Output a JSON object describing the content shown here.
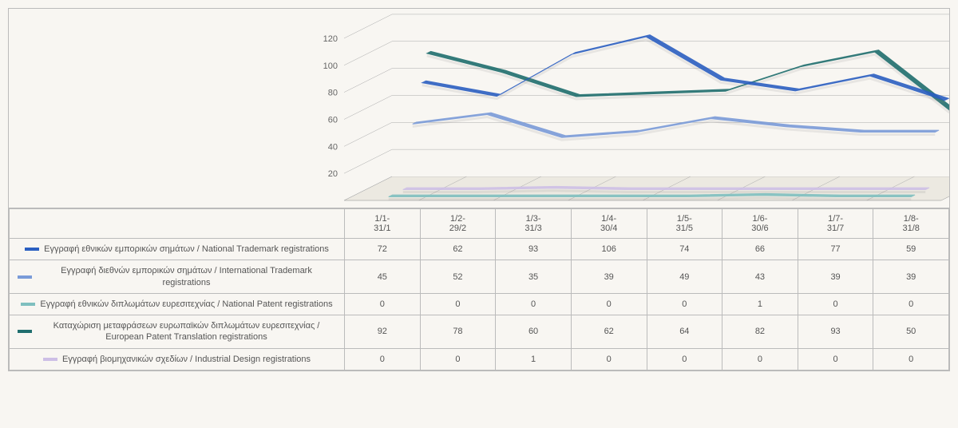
{
  "chart": {
    "type": "line-3d",
    "periods": [
      "1/1-31/1",
      "1/2-29/2",
      "1/3-31/3",
      "1/4-30/4",
      "1/5-31/5",
      "1/6-30/6",
      "1/7-31/7",
      "1/8-31/8"
    ],
    "y_ticks": [
      20,
      40,
      60,
      80,
      100,
      120
    ],
    "ylim": [
      0,
      130
    ],
    "background": "#f8f6f2",
    "grid_color": "#aaaaaa",
    "depth_skew": 60,
    "series": [
      {
        "key": "national_trademark",
        "color": "#2b5fc1",
        "label": "Εγγραφή εθνικών εμπορικών σημάτων / National Trademark registrations",
        "values": [
          72,
          62,
          93,
          106,
          74,
          66,
          77,
          59
        ]
      },
      {
        "key": "intl_trademark",
        "color": "#7a9bd8",
        "label": "Εγγραφή διεθνών εμπορικών σημάτων / International Trademark registrations",
        "values": [
          45,
          52,
          35,
          39,
          49,
          43,
          39,
          39
        ]
      },
      {
        "key": "national_patent",
        "color": "#7fbfbf",
        "label": "Εγγραφή εθνικών διπλωμάτων ευρεσιτεχνίας / National Patent registrations",
        "values": [
          0,
          0,
          0,
          0,
          0,
          1,
          0,
          0
        ]
      },
      {
        "key": "eu_patent_trans",
        "color": "#1f6e6e",
        "label": "Καταχώριση μεταφράσεων ευρωπαϊκών διπλωμάτων ευρεσιτεχνίας / European Patent Translation registrations",
        "values": [
          92,
          78,
          60,
          62,
          64,
          82,
          93,
          50
        ]
      },
      {
        "key": "industrial_design",
        "color": "#cdbfe6",
        "label": "Εγγραφή βιομηχανικών σχεδίων / Industrial Design registrations",
        "values": [
          0,
          0,
          1,
          0,
          0,
          0,
          0,
          0
        ]
      }
    ],
    "label_col_width": 420,
    "data_col_count": 8,
    "font_size": 11
  }
}
